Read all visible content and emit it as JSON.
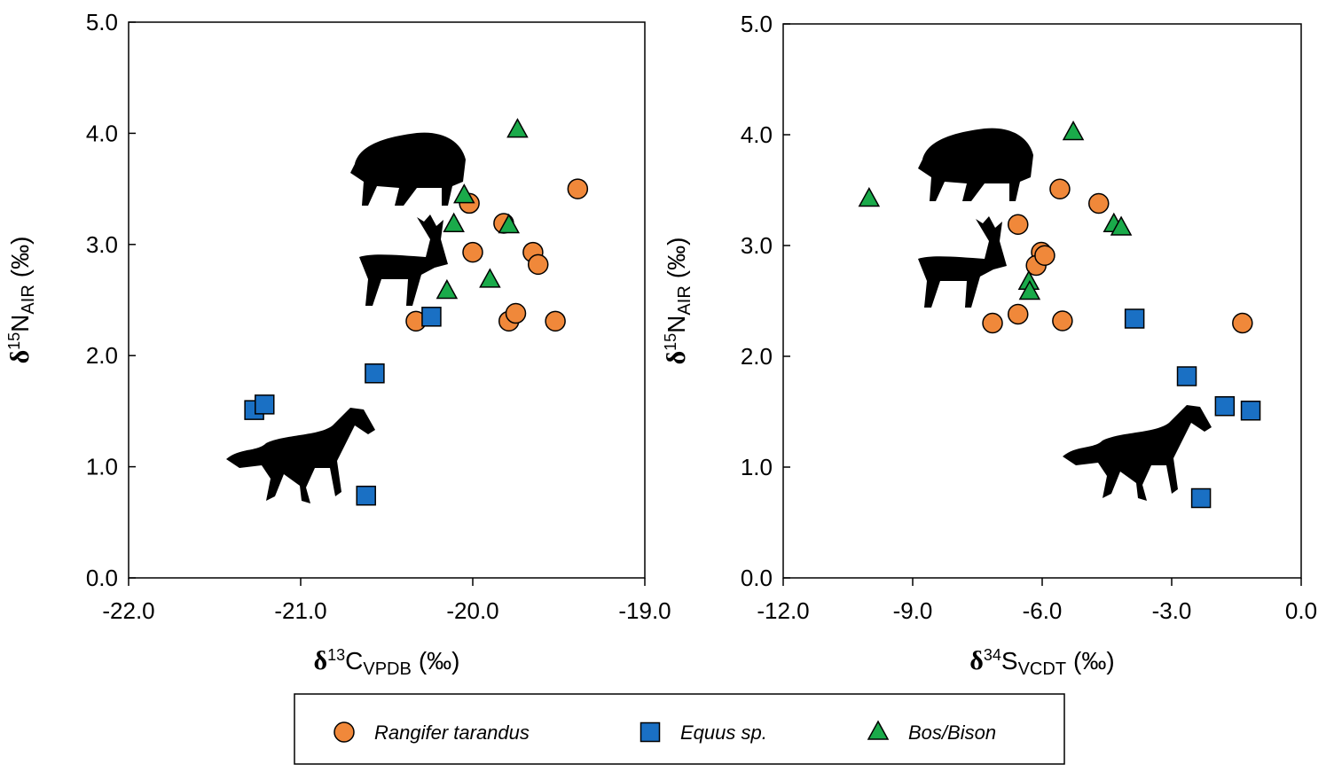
{
  "chart_data": [
    {
      "type": "scatter",
      "xlabel": {
        "prefix": "δ",
        "sup": "13",
        "main": "C",
        "sub": "VPDB",
        "suffix": "(‰)"
      },
      "ylabel": {
        "prefix": "δ",
        "sup": "15",
        "main": "N",
        "sub": "AIR",
        "suffix": "(‰)"
      },
      "xlim": [
        -22,
        -19
      ],
      "ylim": [
        0,
        5
      ],
      "xticks": [
        {
          "value": -22,
          "label": "-22.0"
        },
        {
          "value": -21,
          "label": "-21.0"
        },
        {
          "value": -20,
          "label": "-20.0"
        },
        {
          "value": -19,
          "label": "-19.0"
        }
      ],
      "yticks": [
        {
          "value": 0,
          "label": "0.0"
        },
        {
          "value": 1,
          "label": "1.0"
        },
        {
          "value": 2,
          "label": "2.0"
        },
        {
          "value": 3,
          "label": "3.0"
        },
        {
          "value": 4,
          "label": "4.0"
        },
        {
          "value": 5,
          "label": "5.0"
        }
      ],
      "series": [
        {
          "name": "Rangifer tarandus",
          "color": "#f0883a",
          "marker": "circle",
          "x": [
            -19.39,
            -20.02,
            -20.0,
            -19.82,
            -19.65,
            -19.62,
            -20.33,
            -19.79,
            -19.75,
            -19.52
          ],
          "values": [
            3.5,
            3.37,
            2.93,
            3.19,
            2.93,
            2.82,
            2.31,
            2.31,
            2.38,
            2.31
          ]
        },
        {
          "name": "Equus sp.",
          "color": "#1a70c4",
          "marker": "square",
          "x": [
            -20.24,
            -20.57,
            -21.27,
            -21.21,
            -20.62
          ],
          "values": [
            2.35,
            1.84,
            1.51,
            1.56,
            0.74
          ]
        },
        {
          "name": "Bos/Bison",
          "color": "#1aaa4a",
          "marker": "triangle",
          "x": [
            -19.74,
            -20.05,
            -20.11,
            -19.79,
            -19.9,
            -20.15
          ],
          "values": [
            4.03,
            3.44,
            3.18,
            3.17,
            2.68,
            2.58
          ]
        }
      ]
    },
    {
      "type": "scatter",
      "xlabel": {
        "prefix": "δ",
        "sup": "34",
        "main": "S",
        "sub": "VCDT",
        "suffix": "(‰)"
      },
      "ylabel": {
        "prefix": "δ",
        "sup": "15",
        "main": "N",
        "sub": "AIR",
        "suffix": "(‰)"
      },
      "xlim": [
        -12,
        0
      ],
      "ylim": [
        0,
        5
      ],
      "xticks": [
        {
          "value": -12,
          "label": "-12.0"
        },
        {
          "value": -9,
          "label": "-9.0"
        },
        {
          "value": -6,
          "label": "-6.0"
        },
        {
          "value": -3,
          "label": "-3.0"
        },
        {
          "value": 0,
          "label": "0.0"
        }
      ],
      "yticks": [
        {
          "value": 0,
          "label": "0.0"
        },
        {
          "value": 1,
          "label": "1.0"
        },
        {
          "value": 2,
          "label": "2.0"
        },
        {
          "value": 3,
          "label": "3.0"
        },
        {
          "value": 4,
          "label": "4.0"
        },
        {
          "value": 5,
          "label": "5.0"
        }
      ],
      "series": [
        {
          "color": "#f0883a",
          "marker": "circle",
          "x": [
            -4.69,
            -6.56,
            -5.59,
            -6.02,
            -6.14,
            -5.94,
            -7.15,
            -6.56,
            -5.53,
            -1.36
          ],
          "values": [
            3.38,
            3.19,
            3.51,
            2.94,
            2.82,
            2.91,
            2.3,
            2.38,
            2.32,
            2.3
          ]
        },
        {
          "color": "#1a70c4",
          "marker": "square",
          "x": [
            -3.86,
            -2.65,
            -1.77,
            -1.17,
            -2.32
          ],
          "values": [
            2.34,
            1.82,
            1.55,
            1.51,
            0.72
          ]
        },
        {
          "color": "#1aaa4a",
          "marker": "triangle",
          "x": [
            -5.28,
            -10.01,
            -4.34,
            -4.17,
            -6.31,
            -6.29
          ],
          "values": [
            4.02,
            3.42,
            3.19,
            3.16,
            2.67,
            2.58
          ]
        }
      ]
    }
  ]
}
